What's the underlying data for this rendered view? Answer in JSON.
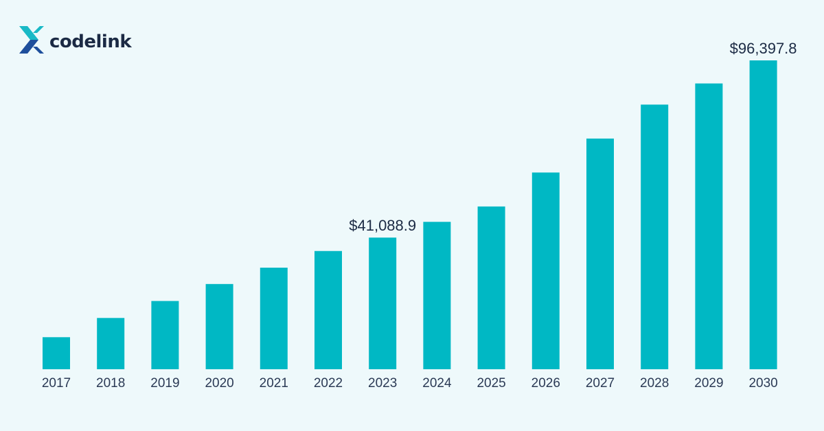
{
  "brand": {
    "name": "codelink",
    "logo_icon": "codelink-x-mark-icon",
    "colors": {
      "cyan": "#19b9c6",
      "blue": "#1e4f9c",
      "text": "#1b2a44"
    }
  },
  "chart_data": {
    "type": "bar",
    "title": "",
    "xlabel": "",
    "ylabel": "",
    "categories": [
      "2017",
      "2018",
      "2019",
      "2020",
      "2021",
      "2022",
      "2023",
      "2024",
      "2025",
      "2026",
      "2027",
      "2028",
      "2029",
      "2030"
    ],
    "values": [
      10000,
      16000,
      21300,
      26600,
      31700,
      36900,
      41088.9,
      46000,
      50800,
      61400,
      72000,
      82600,
      89200,
      96397.8
    ],
    "data_labels": [
      {
        "category": "2023",
        "text": "$41,088.9"
      },
      {
        "category": "2030",
        "text": "$96,397.8"
      }
    ],
    "ylim": [
      0,
      100000
    ],
    "bar_color": "#00b8c4",
    "grid": false,
    "legend": "none"
  }
}
